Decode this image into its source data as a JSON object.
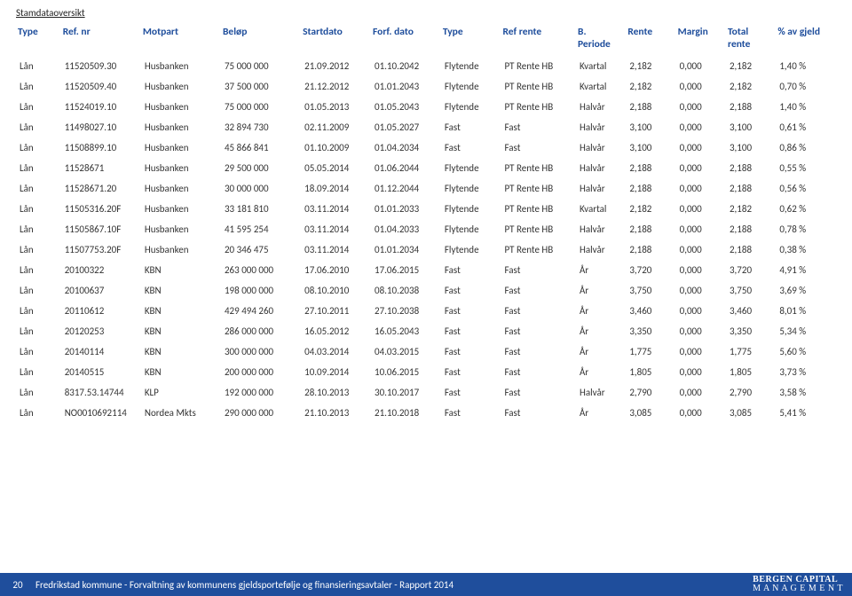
{
  "page_title": "Stamdataoversikt",
  "colors": {
    "header_text": "#1f4e9c",
    "body_text": "#333333",
    "footer_bg": "#1f4e9c",
    "footer_text": "#ffffff"
  },
  "columns": [
    {
      "key": "type",
      "label": "Type",
      "width": "4.5%"
    },
    {
      "key": "refnr",
      "label": "Ref. nr",
      "width": "8%"
    },
    {
      "key": "motpart",
      "label": "Motpart",
      "width": "8%"
    },
    {
      "key": "belop",
      "label": "Beløp",
      "width": "8%"
    },
    {
      "key": "startdato",
      "label": "Startdato",
      "width": "7%"
    },
    {
      "key": "forfdato",
      "label": "Forf. dato",
      "width": "7%"
    },
    {
      "key": "rtype",
      "label": "Type",
      "width": "6%"
    },
    {
      "key": "refrente",
      "label": "Ref rente",
      "width": "7.5%"
    },
    {
      "key": "bperiode",
      "label": "B.",
      "sub": "Periode",
      "width": "5%"
    },
    {
      "key": "rente",
      "label": "Rente",
      "width": "5%"
    },
    {
      "key": "margin",
      "label": "Margin",
      "width": "5%"
    },
    {
      "key": "totrente",
      "label": "Total",
      "sub": "rente",
      "width": "5%"
    },
    {
      "key": "pctgjeld",
      "label": "% av gjeld",
      "width": "6%"
    }
  ],
  "rows": [
    [
      "Lån",
      "11520509.30",
      "Husbanken",
      "75 000 000",
      "21.09.2012",
      "01.10.2042",
      "Flytende",
      "PT Rente HB",
      "Kvartal",
      "2,182",
      "0,000",
      "2,182",
      "1,40 %"
    ],
    [
      "Lån",
      "11520509.40",
      "Husbanken",
      "37 500 000",
      "21.12.2012",
      "01.01.2043",
      "Flytende",
      "PT Rente HB",
      "Kvartal",
      "2,182",
      "0,000",
      "2,182",
      "0,70 %"
    ],
    [
      "Lån",
      "11524019.10",
      "Husbanken",
      "75 000 000",
      "01.05.2013",
      "01.05.2043",
      "Flytende",
      "PT Rente HB",
      "Halvår",
      "2,188",
      "0,000",
      "2,188",
      "1,40 %"
    ],
    [
      "Lån",
      "11498027.10",
      "Husbanken",
      "32 894 730",
      "02.11.2009",
      "01.05.2027",
      "Fast",
      "Fast",
      "Halvår",
      "3,100",
      "0,000",
      "3,100",
      "0,61 %"
    ],
    [
      "Lån",
      "11508899.10",
      "Husbanken",
      "45 866 841",
      "01.10.2009",
      "01.04.2034",
      "Fast",
      "Fast",
      "Halvår",
      "3,100",
      "0,000",
      "3,100",
      "0,86 %"
    ],
    [
      "Lån",
      "11528671",
      "Husbanken",
      "29 500 000",
      "05.05.2014",
      "01.06.2044",
      "Flytende",
      "PT Rente HB",
      "Halvår",
      "2,188",
      "0,000",
      "2,188",
      "0,55 %"
    ],
    [
      "Lån",
      "11528671.20",
      "Husbanken",
      "30 000 000",
      "18.09.2014",
      "01.12.2044",
      "Flytende",
      "PT Rente HB",
      "Halvår",
      "2,188",
      "0,000",
      "2,188",
      "0,56 %"
    ],
    [
      "Lån",
      "11505316.20F",
      "Husbanken",
      "33 181 810",
      "03.11.2014",
      "01.01.2033",
      "Flytende",
      "PT Rente HB",
      "Kvartal",
      "2,182",
      "0,000",
      "2,182",
      "0,62 %"
    ],
    [
      "Lån",
      "11505867.10F",
      "Husbanken",
      "41 595 254",
      "03.11.2014",
      "01.04.2033",
      "Flytende",
      "PT Rente HB",
      "Halvår",
      "2,188",
      "0,000",
      "2,188",
      "0,78 %"
    ],
    [
      "Lån",
      "11507753.20F",
      "Husbanken",
      "20 346 475",
      "03.11.2014",
      "01.01.2034",
      "Flytende",
      "PT Rente HB",
      "Halvår",
      "2,188",
      "0,000",
      "2,188",
      "0,38 %"
    ],
    [
      "Lån",
      "20100322",
      "KBN",
      "263 000 000",
      "17.06.2010",
      "17.06.2015",
      "Fast",
      "Fast",
      "År",
      "3,720",
      "0,000",
      "3,720",
      "4,91 %"
    ],
    [
      "Lån",
      "20100637",
      "KBN",
      "198 000 000",
      "08.10.2010",
      "08.10.2038",
      "Fast",
      "Fast",
      "År",
      "3,750",
      "0,000",
      "3,750",
      "3,69 %"
    ],
    [
      "Lån",
      "20110612",
      "KBN",
      "429 494 260",
      "27.10.2011",
      "27.10.2038",
      "Fast",
      "Fast",
      "År",
      "3,460",
      "0,000",
      "3,460",
      "8,01 %"
    ],
    [
      "Lån",
      "20120253",
      "KBN",
      "286 000 000",
      "16.05.2012",
      "16.05.2043",
      "Fast",
      "Fast",
      "År",
      "3,350",
      "0,000",
      "3,350",
      "5,34 %"
    ],
    [
      "Lån",
      "20140114",
      "KBN",
      "300 000 000",
      "04.03.2014",
      "04.03.2015",
      "Fast",
      "Fast",
      "År",
      "1,775",
      "0,000",
      "1,775",
      "5,60 %"
    ],
    [
      "Lån",
      "20140515",
      "KBN",
      "200 000 000",
      "10.09.2014",
      "10.06.2015",
      "Fast",
      "Fast",
      "År",
      "1,805",
      "0,000",
      "1,805",
      "3,73 %"
    ],
    [
      "Lån",
      "8317.53.14744",
      "KLP",
      "192 000 000",
      "28.10.2013",
      "30.10.2017",
      "Fast",
      "Fast",
      "Halvår",
      "2,790",
      "0,000",
      "2,790",
      "3,58 %"
    ],
    [
      "Lån",
      "NO0010692114",
      "Nordea Mkts",
      "290 000 000",
      "21.10.2013",
      "21.10.2018",
      "Fast",
      "Fast",
      "År",
      "3,085",
      "0,000",
      "3,085",
      "5,41 %"
    ]
  ],
  "footer": {
    "page_number": "20",
    "text": "Fredrikstad kommune - Forvaltning av kommunens gjeldsportefølje og finansieringsavtaler  - Rapport 2014",
    "logo_line1": "BERGEN CAPITAL",
    "logo_line2": "M A N A G E M E N T"
  }
}
